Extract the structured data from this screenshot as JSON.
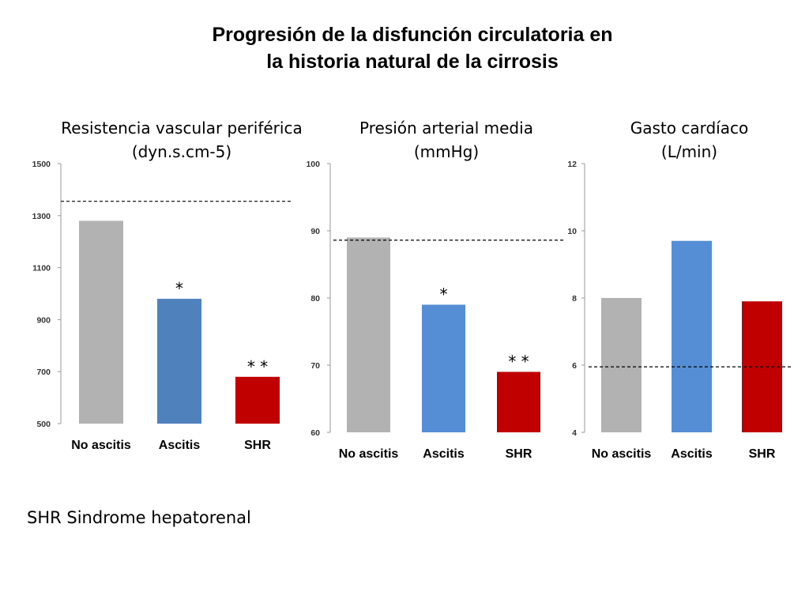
{
  "title_line1": "Progresión de la disfunción circulatoria en",
  "title_line2": "la historia natural de la cirrosis",
  "footnote": "SHR Sindrome hepatorenal",
  "chart_data": [
    {
      "type": "bar",
      "title_line1": "Resistencia vascular periférica",
      "title_line2": "(dyn.s.cm-5)",
      "categories": [
        "No ascitis",
        "Ascitis",
        "SHR"
      ],
      "values": [
        1280,
        980,
        680
      ],
      "colors": [
        "#b2b2b2",
        "#4f81bd",
        "#c00000"
      ],
      "ylim": [
        500,
        1500
      ],
      "yticks": [
        500,
        700,
        900,
        1100,
        1300,
        1500
      ],
      "reference_line": 1355,
      "annotations": [
        "",
        "*",
        "* *"
      ]
    },
    {
      "type": "bar",
      "title_line1": "Presión arterial media",
      "title_line2": "(mmHg)",
      "categories": [
        "No ascitis",
        "Ascitis",
        "SHR"
      ],
      "values": [
        89,
        79,
        69
      ],
      "colors": [
        "#b2b2b2",
        "#558ed5",
        "#c00000"
      ],
      "ylim": [
        60,
        100
      ],
      "yticks": [
        60,
        70,
        80,
        90,
        100
      ],
      "reference_line": 88.6,
      "annotations": [
        "",
        "*",
        "* *"
      ]
    },
    {
      "type": "bar",
      "title_line1": "Gasto cardíaco",
      "title_line2": "(L/min)",
      "categories": [
        "No ascitis",
        "Ascitis",
        "SHR"
      ],
      "values": [
        8,
        9.7,
        7.9
      ],
      "colors": [
        "#b2b2b2",
        "#558ed5",
        "#c00000"
      ],
      "ylim": [
        4,
        12
      ],
      "yticks": [
        4,
        6,
        8,
        10,
        12
      ],
      "reference_line": 5.95,
      "annotations": [
        "",
        "",
        ""
      ]
    }
  ]
}
